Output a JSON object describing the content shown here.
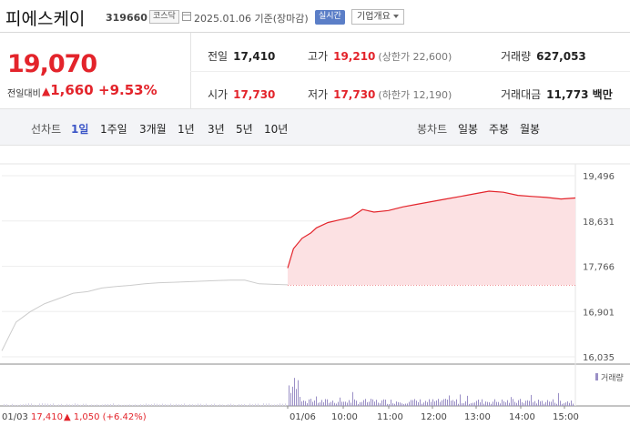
{
  "header": {
    "title": "피에스케이",
    "code": "319660",
    "market": "코스닥",
    "date": "2025.01.06 기준(장마감)",
    "live": "실시간",
    "company_dropdown": "기업개요"
  },
  "quote": {
    "price": "19,070",
    "change_label": "전일대비",
    "change_tri": "▲",
    "change": "1,660",
    "change_pct": "+9.53%",
    "prev_close_label": "전일",
    "prev_close": "17,410",
    "high_label": "고가",
    "high": "19,210",
    "upper_limit": "(상한가 22,600)",
    "volume_label": "거래량",
    "volume": "627,053",
    "open_label": "시가",
    "open": "17,730",
    "low_label": "저가",
    "low": "17,730",
    "lower_limit": "(하한가 12,190)",
    "amount_label": "거래대금",
    "amount": "11,773 백만"
  },
  "tabs": {
    "line_label": "선차트",
    "line_items": [
      "1일",
      "1주일",
      "3개월",
      "1년",
      "3년",
      "5년",
      "10년"
    ],
    "candle_label": "봉차트",
    "candle_items": [
      "일봉",
      "주봉",
      "월봉"
    ]
  },
  "colors": {
    "up": "#e3242b",
    "fill": "#fce1e3",
    "prev": "#cccccc",
    "volume": "#9a8fc6",
    "accent": "#3b55c7"
  },
  "chart_data": {
    "type": "line",
    "y_ticks": [
      "19,496",
      "18,631",
      "17,766",
      "16,901",
      "16,035"
    ],
    "ylim": [
      16035,
      19496
    ],
    "x_ticks": [
      "01/06",
      "10:00",
      "11:00",
      "12:00",
      "13:00",
      "14:00",
      "15:00"
    ],
    "prev_day_label": "01/03",
    "prev_day_close": "17,410",
    "prev_day_change": "▲ 1,050 (+6.42%)",
    "volume_legend": "거래량",
    "series": [
      {
        "name": "01/03",
        "x": [
          0,
          5,
          10,
          15,
          20,
          25,
          30,
          35,
          40,
          45,
          50,
          55,
          60,
          65,
          70,
          75,
          80,
          85,
          90,
          95,
          100
        ],
        "values": [
          16150,
          16700,
          16900,
          17050,
          17150,
          17250,
          17280,
          17350,
          17380,
          17400,
          17430,
          17450,
          17460,
          17470,
          17480,
          17490,
          17500,
          17500,
          17430,
          17420,
          17410
        ]
      },
      {
        "name": "01/06",
        "x": [
          0,
          2,
          5,
          8,
          10,
          14,
          18,
          22,
          26,
          30,
          35,
          40,
          45,
          50,
          55,
          60,
          65,
          70,
          75,
          80,
          85,
          90,
          95,
          100
        ],
        "values": [
          17730,
          18100,
          18300,
          18400,
          18500,
          18600,
          18650,
          18700,
          18850,
          18800,
          18830,
          18900,
          18950,
          19000,
          19050,
          19100,
          19150,
          19200,
          19180,
          19120,
          19100,
          19080,
          19050,
          19070
        ]
      }
    ],
    "reference_value": 17410
  }
}
